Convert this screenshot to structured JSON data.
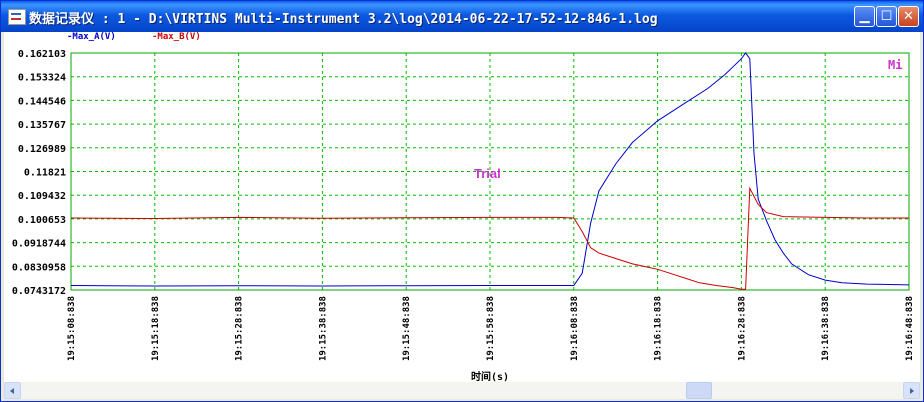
{
  "window": {
    "title": "数据记录仪 : 1 - D:\\VIRTINS Multi-Instrument 3.2\\log\\2014-06-22-17-52-12-846-1.log",
    "min_glyph": "▁",
    "max_glyph": "☐",
    "close_glyph": "✕"
  },
  "legend": {
    "series_a": "-Max_A(V)",
    "series_b": "-Max_B(V)",
    "color_a": "#0000cc",
    "color_b": "#cc0000"
  },
  "annotations": {
    "trial": "Trial",
    "corner_mark": "Mi",
    "trial_color": "#cc33cc"
  },
  "chart_data": {
    "type": "line",
    "xlabel": "时间(s)",
    "x_unit": "s",
    "xlim": [
      "19:15:08:838",
      "19:16:48:838"
    ],
    "ylim": [
      0.0743172,
      0.162103
    ],
    "grid": true,
    "legend_position": "top-left",
    "y_ticks": [
      "0.162103",
      "0.153324",
      "0.144546",
      "0.135767",
      "0.126989",
      "0.11821",
      "0.109432",
      "0.100653",
      "0.0918744",
      "0.0830958",
      "0.0743172"
    ],
    "x_ticks": [
      "19:15:08:838",
      "19:15:18:838",
      "19:15:28:838",
      "19:15:38:838",
      "19:15:48:838",
      "19:15:58:838",
      "19:16:08:838",
      "19:16:18:838",
      "19:16:28:838",
      "19:16:38:838",
      "19:16:48:838"
    ],
    "series": [
      {
        "name": "Max_A(V)",
        "color": "#0000cc",
        "x": [
          0,
          10,
          20,
          30,
          40,
          50,
          58,
          60,
          61,
          62,
          63,
          65,
          67,
          70,
          73,
          76,
          78,
          79,
          80,
          80.5,
          81,
          81.5,
          82,
          83,
          84,
          85,
          86,
          88,
          90,
          92,
          95,
          100
        ],
        "y": [
          0.076,
          0.0758,
          0.0759,
          0.0758,
          0.0759,
          0.076,
          0.076,
          0.076,
          0.0805,
          0.099,
          0.111,
          0.121,
          0.129,
          0.137,
          0.143,
          0.149,
          0.154,
          0.157,
          0.16,
          0.1621,
          0.16,
          0.125,
          0.108,
          0.1,
          0.093,
          0.088,
          0.084,
          0.08,
          0.078,
          0.077,
          0.0765,
          0.0762
        ]
      },
      {
        "name": "Max_B(V)",
        "color": "#cc0000",
        "x": [
          0,
          10,
          20,
          30,
          40,
          50,
          58,
          60,
          61,
          62,
          63,
          65,
          67,
          70,
          72,
          73,
          75,
          77,
          79,
          80,
          80.5,
          81,
          82,
          83,
          85,
          90,
          95,
          100
        ],
        "y": [
          0.101,
          0.1008,
          0.1012,
          0.1009,
          0.1011,
          0.1012,
          0.1012,
          0.101,
          0.096,
          0.09,
          0.088,
          0.086,
          0.084,
          0.082,
          0.08,
          0.079,
          0.077,
          0.076,
          0.0752,
          0.0746,
          0.0746,
          0.112,
          0.106,
          0.103,
          0.1015,
          0.1012,
          0.101,
          0.101
        ]
      }
    ]
  }
}
